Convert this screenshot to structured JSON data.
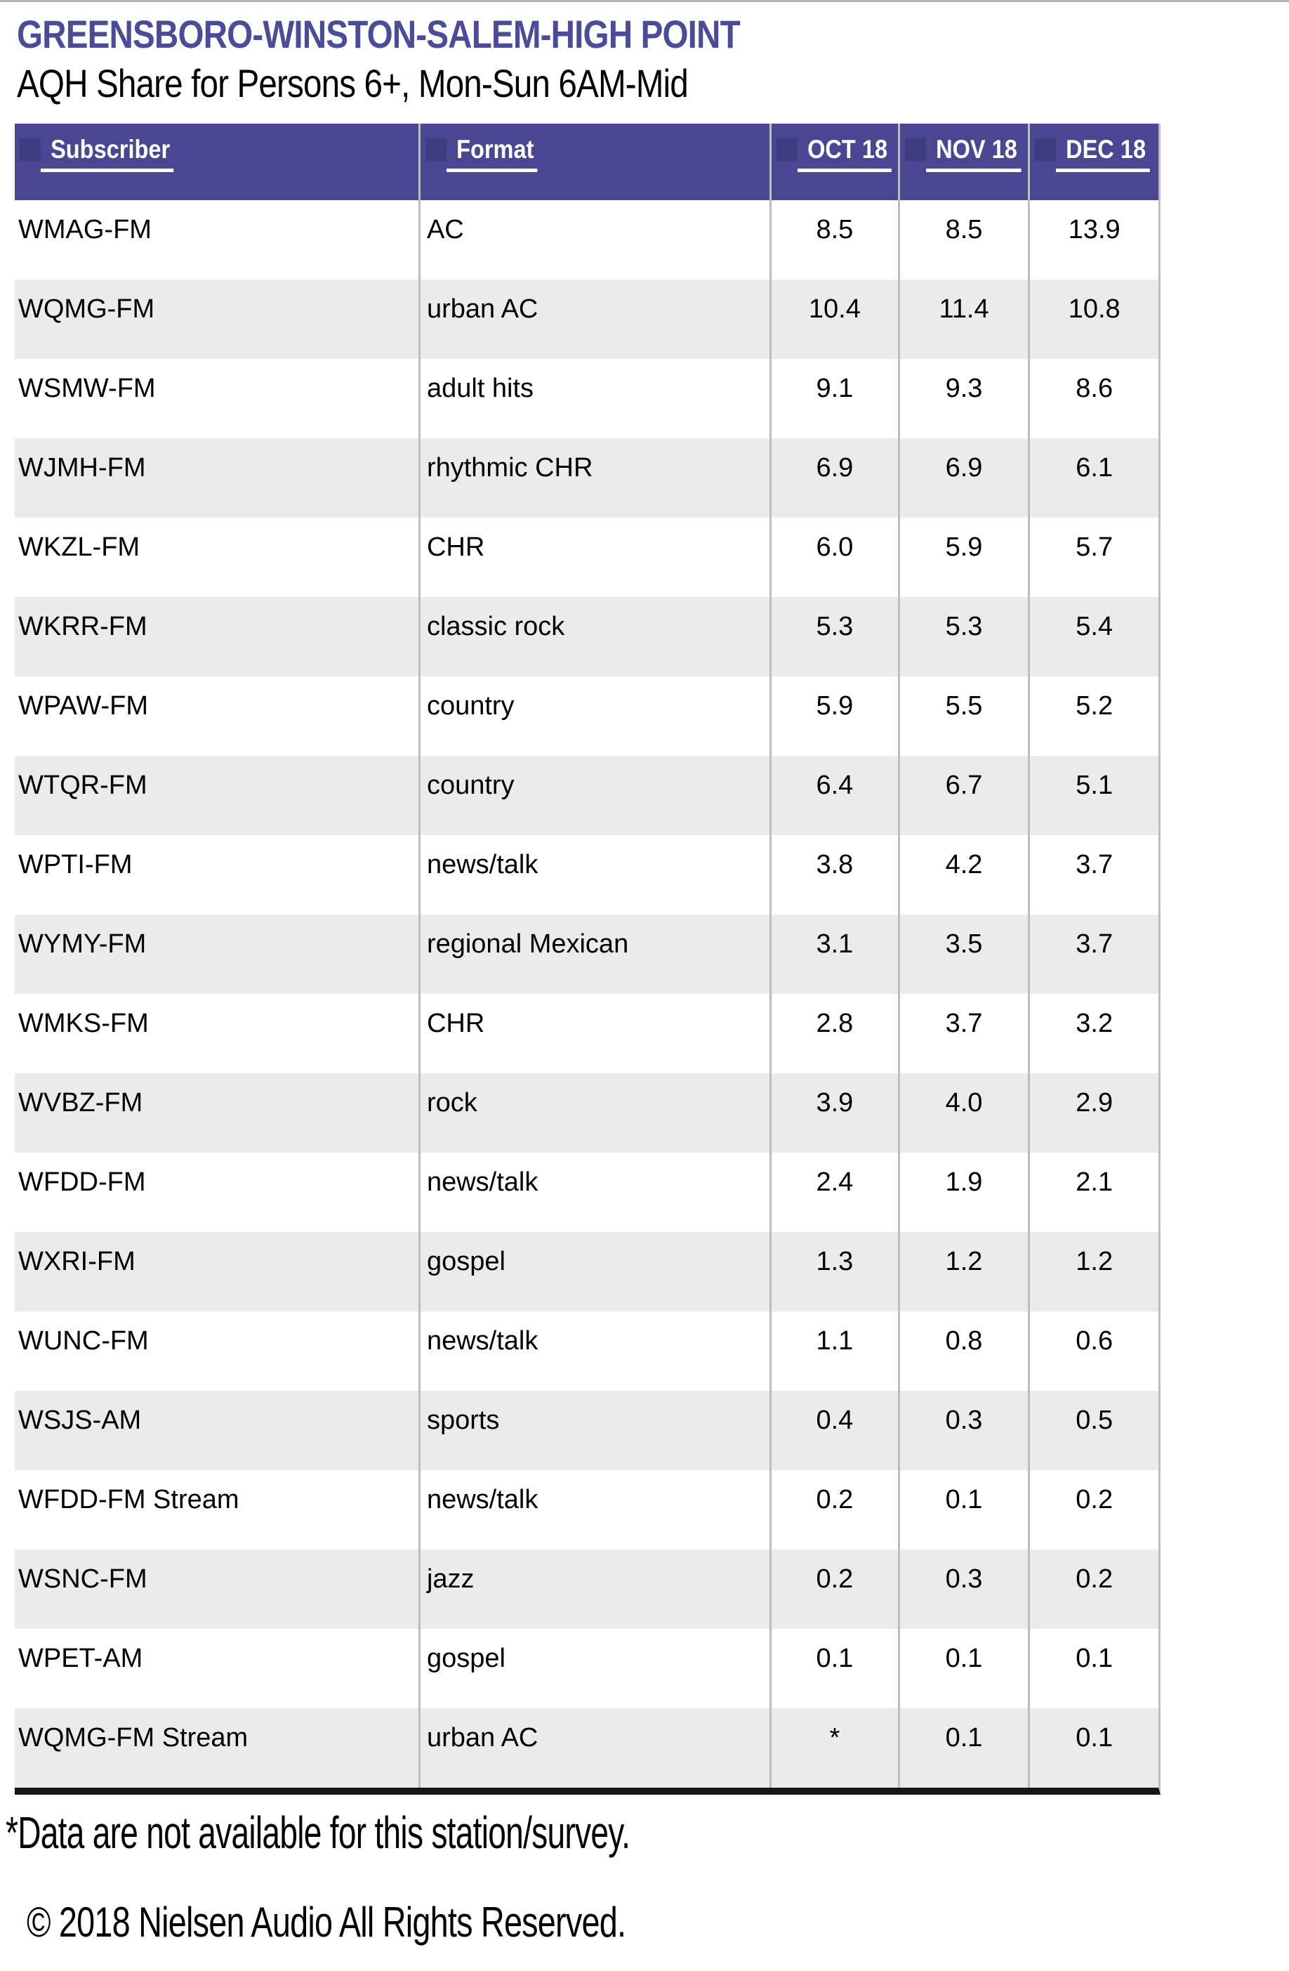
{
  "page": {
    "title": "GREENSBORO-WINSTON-SALEM-HIGH POINT",
    "subtitle": "AQH Share for Persons 6+, Mon-Sun 6AM-Mid",
    "footnote": "*Data are not available for this station/survey.",
    "copyright": "© 2018 Nielsen Audio All Rights Reserved."
  },
  "table": {
    "columns": [
      {
        "key": "subscriber",
        "label": "Subscriber"
      },
      {
        "key": "format",
        "label": "Format"
      },
      {
        "key": "oct18",
        "label": "OCT 18"
      },
      {
        "key": "nov18",
        "label": "NOV 18"
      },
      {
        "key": "dec18",
        "label": "DEC 18"
      }
    ],
    "rows": [
      {
        "subscriber": "WMAG-FM",
        "format": "AC",
        "oct18": "8.5",
        "nov18": "8.5",
        "dec18": "13.9"
      },
      {
        "subscriber": "WQMG-FM",
        "format": "urban AC",
        "oct18": "10.4",
        "nov18": "11.4",
        "dec18": "10.8"
      },
      {
        "subscriber": "WSMW-FM",
        "format": "adult hits",
        "oct18": "9.1",
        "nov18": "9.3",
        "dec18": "8.6"
      },
      {
        "subscriber": "WJMH-FM",
        "format": "rhythmic CHR",
        "oct18": "6.9",
        "nov18": "6.9",
        "dec18": "6.1"
      },
      {
        "subscriber": "WKZL-FM",
        "format": "CHR",
        "oct18": "6.0",
        "nov18": "5.9",
        "dec18": "5.7"
      },
      {
        "subscriber": "WKRR-FM",
        "format": "classic rock",
        "oct18": "5.3",
        "nov18": "5.3",
        "dec18": "5.4"
      },
      {
        "subscriber": "WPAW-FM",
        "format": "country",
        "oct18": "5.9",
        "nov18": "5.5",
        "dec18": "5.2"
      },
      {
        "subscriber": "WTQR-FM",
        "format": "country",
        "oct18": "6.4",
        "nov18": "6.7",
        "dec18": "5.1"
      },
      {
        "subscriber": "WPTI-FM",
        "format": "news/talk",
        "oct18": "3.8",
        "nov18": "4.2",
        "dec18": "3.7"
      },
      {
        "subscriber": "WYMY-FM",
        "format": "regional Mexican",
        "oct18": "3.1",
        "nov18": "3.5",
        "dec18": "3.7"
      },
      {
        "subscriber": "WMKS-FM",
        "format": "CHR",
        "oct18": "2.8",
        "nov18": "3.7",
        "dec18": "3.2"
      },
      {
        "subscriber": "WVBZ-FM",
        "format": "rock",
        "oct18": "3.9",
        "nov18": "4.0",
        "dec18": "2.9"
      },
      {
        "subscriber": "WFDD-FM",
        "format": "news/talk",
        "oct18": "2.4",
        "nov18": "1.9",
        "dec18": "2.1"
      },
      {
        "subscriber": "WXRI-FM",
        "format": "gospel",
        "oct18": "1.3",
        "nov18": "1.2",
        "dec18": "1.2"
      },
      {
        "subscriber": "WUNC-FM",
        "format": "news/talk",
        "oct18": "1.1",
        "nov18": "0.8",
        "dec18": "0.6"
      },
      {
        "subscriber": "WSJS-AM",
        "format": "sports",
        "oct18": "0.4",
        "nov18": "0.3",
        "dec18": "0.5"
      },
      {
        "subscriber": "WFDD-FM Stream",
        "format": "news/talk",
        "oct18": "0.2",
        "nov18": "0.1",
        "dec18": "0.2"
      },
      {
        "subscriber": "WSNC-FM",
        "format": "jazz",
        "oct18": "0.2",
        "nov18": "0.3",
        "dec18": "0.2"
      },
      {
        "subscriber": "WPET-AM",
        "format": "gospel",
        "oct18": "0.1",
        "nov18": "0.1",
        "dec18": "0.1"
      },
      {
        "subscriber": "WQMG-FM Stream",
        "format": "urban AC",
        "oct18": "*",
        "nov18": "0.1",
        "dec18": "0.1"
      }
    ]
  },
  "colors": {
    "title_text": "#4b4b9b",
    "header_bg": "#4b4691",
    "header_accent": "#3e3c80",
    "header_text": "#ffffff",
    "row_stripe": "#ebebeb",
    "divider": "#bdbdbd",
    "bottom_border": "#161616",
    "top_rule": "#b5b5b5"
  }
}
